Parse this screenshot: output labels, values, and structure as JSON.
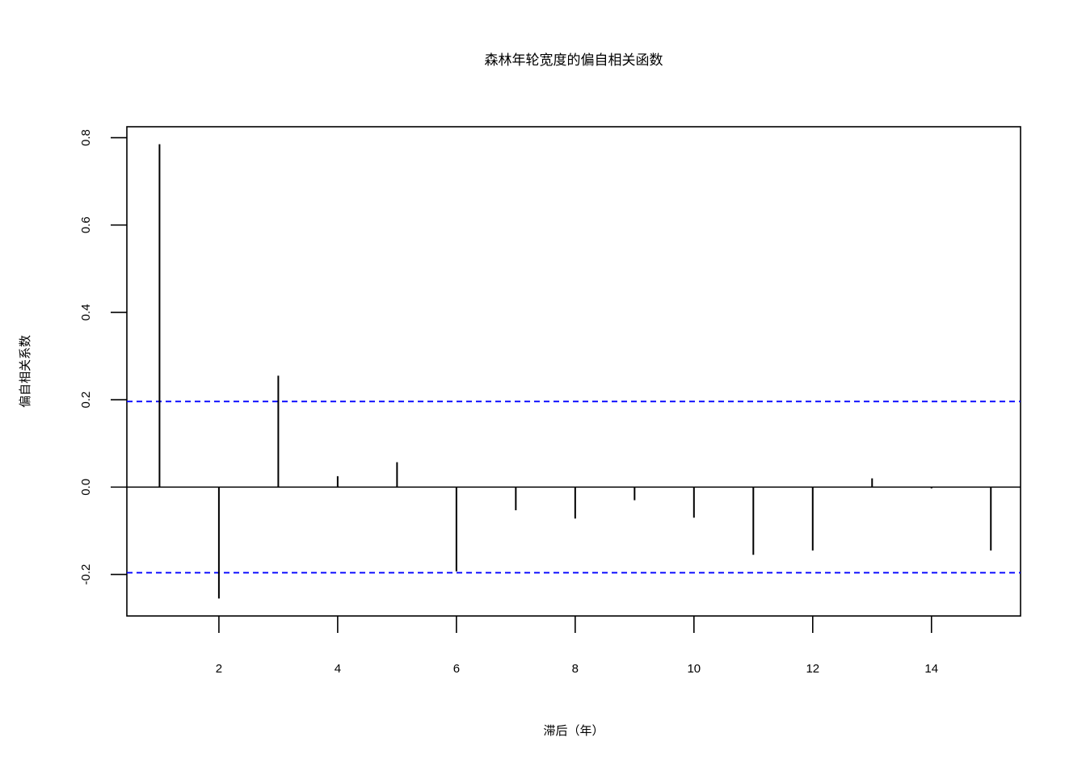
{
  "chart_data": {
    "type": "bar",
    "title": "森林年轮宽度的偏自相关函数",
    "xlabel": "滞后（年）",
    "ylabel": "偏自相关系数",
    "x": [
      1,
      2,
      3,
      4,
      5,
      6,
      7,
      8,
      9,
      10,
      11,
      12,
      13,
      14,
      15
    ],
    "values": [
      0.785,
      -0.255,
      0.255,
      0.025,
      0.057,
      -0.193,
      -0.053,
      -0.072,
      -0.03,
      -0.07,
      -0.155,
      -0.145,
      0.02,
      -0.003,
      -0.145
    ],
    "xlim": [
      0.45,
      15.5
    ],
    "ylim": [
      -0.295,
      0.825
    ],
    "xticks": [
      2,
      4,
      6,
      8,
      10,
      12,
      14
    ],
    "yticks": [
      -0.2,
      0.0,
      0.2,
      0.4,
      0.6,
      0.8
    ],
    "ytick_labels": [
      "-0.2",
      "0.0",
      "0.2",
      "0.4",
      "0.6",
      "0.8"
    ],
    "confidence_bounds": [
      0.196,
      -0.196
    ],
    "bound_color": "#0000ff",
    "bar_color": "#000000",
    "grid": false
  }
}
